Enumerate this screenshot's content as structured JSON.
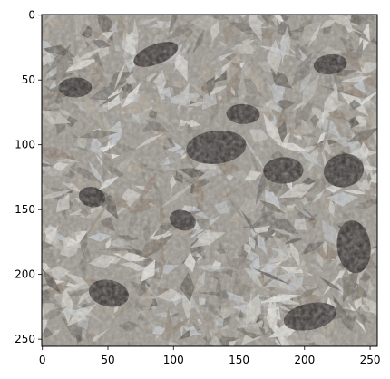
{
  "chart_data": {
    "type": "heatmap",
    "title": "",
    "xlabel": "",
    "ylabel": "",
    "xlim": [
      0,
      255
    ],
    "ylim": [
      255,
      0
    ],
    "grid": false,
    "image_description": "photographic image rendered via imshow",
    "x_ticks": [
      0,
      50,
      100,
      150,
      200,
      250
    ],
    "y_ticks": [
      0,
      50,
      100,
      150,
      200,
      250
    ],
    "x_tick_labels": [
      "0",
      "50",
      "100",
      "150",
      "200",
      "250"
    ],
    "y_tick_labels": [
      "0",
      "50",
      "100",
      "150",
      "200",
      "250"
    ],
    "colors": {
      "light": "#c9c6bf",
      "mid": "#8d877c",
      "dark": "#2a2522",
      "warm": "#7a6a5a"
    }
  }
}
